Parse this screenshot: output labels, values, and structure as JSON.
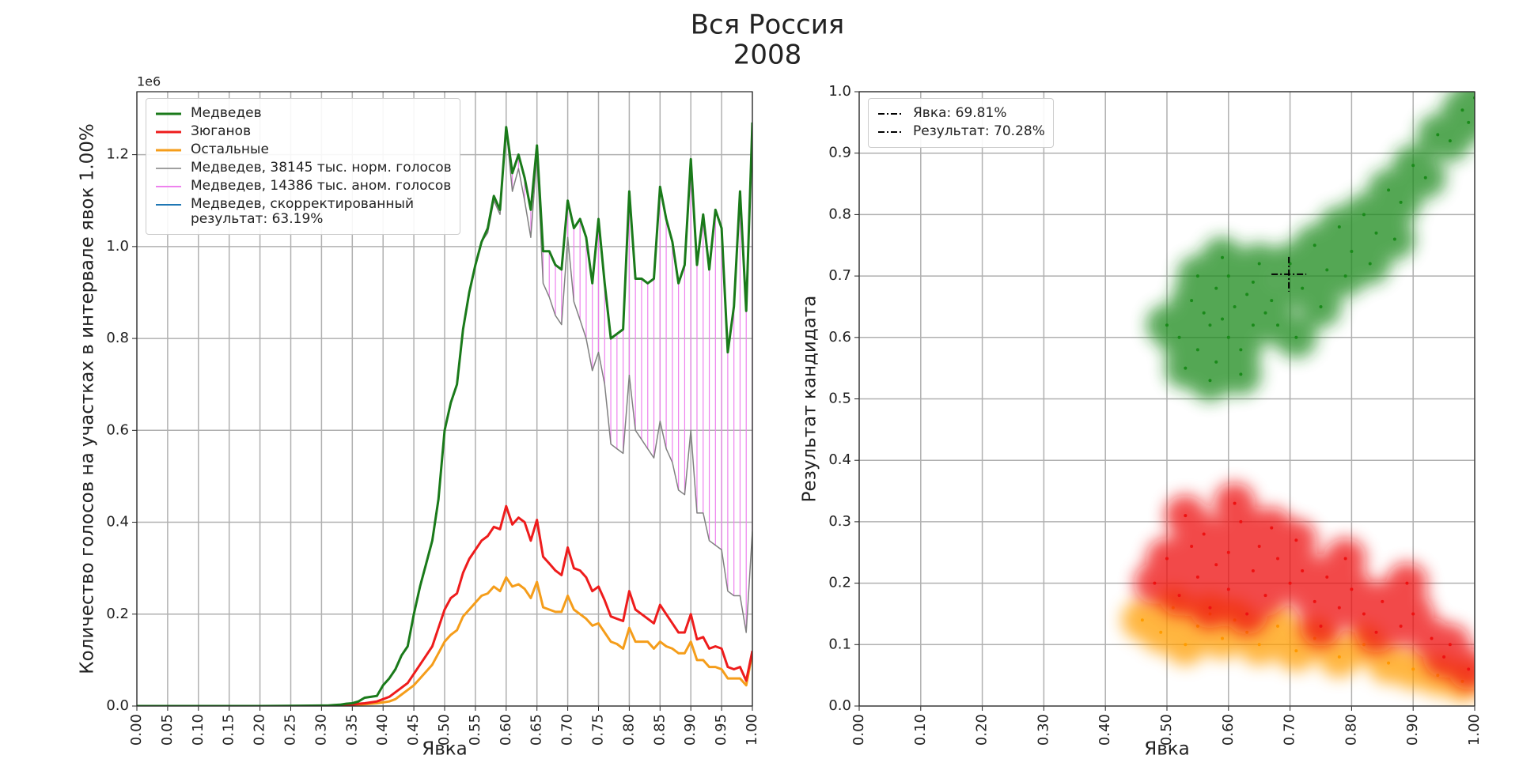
{
  "figure_title": [
    "Вся Россия",
    "2008"
  ],
  "chart_data": [
    {
      "type": "line",
      "xlabel": "Явка",
      "ylabel": "Количество голосов на участках в интервале явок 1.00%",
      "y_offset_label": "1e6",
      "grid": true,
      "legend": "upper left",
      "xlim": [
        0,
        1
      ],
      "ylim": [
        0,
        1.337
      ],
      "xticks": [
        {
          "value": 0,
          "label": "0.00"
        },
        {
          "value": 0.05,
          "label": "0.05"
        },
        {
          "value": 0.1,
          "label": "0.10"
        },
        {
          "value": 0.15,
          "label": "0.15"
        },
        {
          "value": 0.2,
          "label": "0.20"
        },
        {
          "value": 0.25,
          "label": "0.25"
        },
        {
          "value": 0.3,
          "label": "0.30"
        },
        {
          "value": 0.35,
          "label": "0.35"
        },
        {
          "value": 0.4,
          "label": "0.40"
        },
        {
          "value": 0.45,
          "label": "0.45"
        },
        {
          "value": 0.5,
          "label": "0.50"
        },
        {
          "value": 0.55,
          "label": "0.55"
        },
        {
          "value": 0.6,
          "label": "0.60"
        },
        {
          "value": 0.65,
          "label": "0.65"
        },
        {
          "value": 0.7,
          "label": "0.70"
        },
        {
          "value": 0.75,
          "label": "0.75"
        },
        {
          "value": 0.8,
          "label": "0.80"
        },
        {
          "value": 0.85,
          "label": "0.85"
        },
        {
          "value": 0.9,
          "label": "0.90"
        },
        {
          "value": 0.95,
          "label": "0.95"
        },
        {
          "value": 1,
          "label": "1.00"
        }
      ],
      "yticks": [
        {
          "value": 0,
          "label": "0.0"
        },
        0.2,
        0.4,
        0.6,
        0.8,
        {
          "value": 1,
          "label": "1.0"
        },
        1.2
      ],
      "x": [
        0,
        0.1,
        0.2,
        0.3,
        0.31,
        0.32,
        0.33,
        0.34,
        0.35,
        0.36,
        0.37,
        0.38,
        0.39,
        0.4,
        0.41,
        0.42,
        0.43,
        0.44,
        0.45,
        0.46,
        0.47,
        0.48,
        0.49,
        0.5,
        0.51,
        0.52,
        0.53,
        0.54,
        0.55,
        0.56,
        0.57,
        0.58,
        0.59,
        0.6,
        0.61,
        0.62,
        0.63,
        0.64,
        0.65,
        0.66,
        0.67,
        0.68,
        0.69,
        0.7,
        0.71,
        0.72,
        0.73,
        0.74,
        0.75,
        0.76,
        0.77,
        0.78,
        0.79,
        0.8,
        0.81,
        0.82,
        0.83,
        0.84,
        0.85,
        0.86,
        0.87,
        0.88,
        0.89,
        0.9,
        0.91,
        0.92,
        0.93,
        0.94,
        0.95,
        0.96,
        0.97,
        0.98,
        0.99,
        1.0
      ],
      "series": [
        {
          "name": "Медведев",
          "color": "#1a7a1a",
          "width": 3,
          "values": [
            0,
            0,
            0,
            0.001,
            0.001,
            0.002,
            0.003,
            0.005,
            0.006,
            0.01,
            0.018,
            0.02,
            0.022,
            0.045,
            0.06,
            0.08,
            0.11,
            0.13,
            0.2,
            0.26,
            0.31,
            0.36,
            0.45,
            0.6,
            0.66,
            0.7,
            0.82,
            0.9,
            0.96,
            1.01,
            1.04,
            1.11,
            1.08,
            1.26,
            1.16,
            1.2,
            1.15,
            1.08,
            1.22,
            0.99,
            0.99,
            0.96,
            0.95,
            1.1,
            1.04,
            1.06,
            1.02,
            0.92,
            1.06,
            0.92,
            0.8,
            0.81,
            0.82,
            1.12,
            0.93,
            0.93,
            0.92,
            0.93,
            1.13,
            1.06,
            1.01,
            0.92,
            0.96,
            1.19,
            0.96,
            1.07,
            0.95,
            1.08,
            1.04,
            0.77,
            0.87,
            1.12,
            0.86,
            1.27
          ]
        },
        {
          "name": "Зюганов",
          "color": "#ee1c1c",
          "width": 3,
          "values": [
            0,
            0,
            0,
            0,
            0,
            0.001,
            0.001,
            0.002,
            0.003,
            0.005,
            0.006,
            0.008,
            0.01,
            0.015,
            0.02,
            0.03,
            0.04,
            0.05,
            0.07,
            0.09,
            0.11,
            0.13,
            0.17,
            0.21,
            0.235,
            0.245,
            0.29,
            0.32,
            0.34,
            0.36,
            0.37,
            0.39,
            0.385,
            0.435,
            0.395,
            0.41,
            0.4,
            0.36,
            0.405,
            0.325,
            0.31,
            0.295,
            0.285,
            0.345,
            0.3,
            0.295,
            0.28,
            0.25,
            0.26,
            0.23,
            0.195,
            0.19,
            0.185,
            0.25,
            0.21,
            0.2,
            0.19,
            0.18,
            0.22,
            0.2,
            0.18,
            0.16,
            0.16,
            0.2,
            0.145,
            0.15,
            0.125,
            0.13,
            0.125,
            0.085,
            0.08,
            0.085,
            0.055,
            0.12
          ]
        },
        {
          "name": "Остальные",
          "color": "#f59d1a",
          "width": 3,
          "values": [
            0,
            0,
            0,
            0,
            0,
            0,
            0.001,
            0.001,
            0.002,
            0.003,
            0.004,
            0.005,
            0.006,
            0.008,
            0.01,
            0.015,
            0.025,
            0.035,
            0.045,
            0.06,
            0.075,
            0.09,
            0.115,
            0.14,
            0.155,
            0.165,
            0.195,
            0.21,
            0.225,
            0.24,
            0.245,
            0.26,
            0.25,
            0.28,
            0.26,
            0.265,
            0.255,
            0.235,
            0.27,
            0.215,
            0.21,
            0.205,
            0.205,
            0.24,
            0.21,
            0.2,
            0.19,
            0.175,
            0.18,
            0.16,
            0.14,
            0.135,
            0.125,
            0.17,
            0.14,
            0.14,
            0.14,
            0.125,
            0.14,
            0.13,
            0.125,
            0.115,
            0.115,
            0.14,
            0.1,
            0.1,
            0.085,
            0.085,
            0.08,
            0.06,
            0.06,
            0.06,
            0.045,
            0.115
          ]
        },
        {
          "name": "Медведев, 38145 тыс. норм. голосов",
          "color": "#808080",
          "width": 1.5,
          "values": [
            0,
            0,
            0,
            0.001,
            0.001,
            0.002,
            0.003,
            0.005,
            0.006,
            0.01,
            0.018,
            0.02,
            0.022,
            0.045,
            0.06,
            0.08,
            0.11,
            0.13,
            0.2,
            0.26,
            0.31,
            0.36,
            0.45,
            0.6,
            0.66,
            0.7,
            0.82,
            0.9,
            0.96,
            1.01,
            1.03,
            1.1,
            1.07,
            1.26,
            1.12,
            1.17,
            1.1,
            1.02,
            1.2,
            0.92,
            0.89,
            0.85,
            0.83,
            1.02,
            0.88,
            0.84,
            0.8,
            0.73,
            0.77,
            0.7,
            0.57,
            0.56,
            0.55,
            0.72,
            0.6,
            0.58,
            0.56,
            0.54,
            0.62,
            0.56,
            0.53,
            0.47,
            0.46,
            0.6,
            0.42,
            0.42,
            0.36,
            0.35,
            0.34,
            0.25,
            0.24,
            0.24,
            0.16,
            0.38
          ]
        },
        {
          "name": "Медведев, 14386 тыс. аном. голосов",
          "color": "#ee82ee",
          "style": "vlines"
        },
        {
          "name": "Медведев, скорректированный\nрезультат: 63.19%",
          "color": "#1f77b4"
        }
      ]
    },
    {
      "type": "scatter",
      "xlabel": "Явка",
      "ylabel": "Результат кандидата",
      "grid": true,
      "legend": "upper left",
      "xlim": [
        0,
        1
      ],
      "ylim": [
        0,
        1
      ],
      "xticks": [
        {
          "value": 0,
          "label": "0.00"
        },
        {
          "value": 0.1,
          "label": "0.10"
        },
        {
          "value": 0.2,
          "label": "0.20"
        },
        {
          "value": 0.3,
          "label": "0.30"
        },
        {
          "value": 0.4,
          "label": "0.40"
        },
        {
          "value": 0.5,
          "label": "0.50"
        },
        {
          "value": 0.6,
          "label": "0.60"
        },
        {
          "value": 0.7,
          "label": "0.70"
        },
        {
          "value": 0.8,
          "label": "0.80"
        },
        {
          "value": 0.9,
          "label": "0.90"
        },
        {
          "value": 1,
          "label": "1.00"
        }
      ],
      "yticks": [
        {
          "value": 0,
          "label": "0.0"
        },
        0.1,
        0.2,
        0.3,
        0.4,
        0.5,
        0.6,
        0.7,
        0.8,
        0.9,
        {
          "value": 1,
          "label": "1.0"
        }
      ],
      "crosshair": {
        "x": 0.6981,
        "y": 0.7028,
        "color": "#000000",
        "labels": [
          "Явка: 69.81%",
          "Результат: 70.28%"
        ]
      },
      "series": [
        {
          "color": "#ff9d00",
          "x": [
            0.46,
            0.49,
            0.51,
            0.53,
            0.55,
            0.57,
            0.59,
            0.61,
            0.63,
            0.65,
            0.68,
            0.71,
            0.74,
            0.78,
            0.82,
            0.86,
            0.9,
            0.94,
            0.98
          ],
          "values": [
            0.14,
            0.12,
            0.16,
            0.1,
            0.13,
            0.15,
            0.11,
            0.14,
            0.12,
            0.1,
            0.13,
            0.09,
            0.11,
            0.08,
            0.1,
            0.07,
            0.06,
            0.05,
            0.04
          ]
        },
        {
          "color": "#ee1111",
          "x": [
            0.48,
            0.5,
            0.52,
            0.54,
            0.55,
            0.56,
            0.58,
            0.6,
            0.6,
            0.62,
            0.64,
            0.65,
            0.66,
            0.68,
            0.7,
            0.72,
            0.74,
            0.76,
            0.78,
            0.8,
            0.82,
            0.85,
            0.88,
            0.9,
            0.93,
            0.96,
            0.99,
            0.53,
            0.57,
            0.61,
            0.63,
            0.67,
            0.71,
            0.75,
            0.79,
            0.84,
            0.89,
            0.95
          ],
          "values": [
            0.2,
            0.24,
            0.18,
            0.26,
            0.21,
            0.28,
            0.23,
            0.25,
            0.19,
            0.3,
            0.22,
            0.26,
            0.18,
            0.24,
            0.2,
            0.22,
            0.17,
            0.21,
            0.16,
            0.19,
            0.15,
            0.17,
            0.13,
            0.15,
            0.11,
            0.1,
            0.06,
            0.31,
            0.16,
            0.33,
            0.15,
            0.29,
            0.27,
            0.13,
            0.24,
            0.12,
            0.2,
            0.08
          ]
        },
        {
          "color": "#1a8a1a",
          "x": [
            0.5,
            0.52,
            0.54,
            0.55,
            0.56,
            0.57,
            0.58,
            0.58,
            0.59,
            0.6,
            0.6,
            0.61,
            0.62,
            0.63,
            0.64,
            0.65,
            0.66,
            0.53,
            0.55,
            0.57,
            0.59,
            0.62,
            0.64,
            0.67,
            0.7,
            0.72,
            0.74,
            0.76,
            0.78,
            0.8,
            0.82,
            0.84,
            0.86,
            0.88,
            0.9,
            0.92,
            0.94,
            0.96,
            0.98,
            0.99,
            1.0,
            0.68,
            0.71,
            0.75,
            0.79,
            0.83,
            0.87
          ],
          "values": [
            0.62,
            0.6,
            0.66,
            0.58,
            0.64,
            0.62,
            0.68,
            0.56,
            0.63,
            0.6,
            0.7,
            0.65,
            0.58,
            0.67,
            0.62,
            0.72,
            0.64,
            0.55,
            0.7,
            0.53,
            0.73,
            0.54,
            0.69,
            0.66,
            0.72,
            0.68,
            0.75,
            0.71,
            0.78,
            0.74,
            0.8,
            0.77,
            0.84,
            0.82,
            0.88,
            0.86,
            0.93,
            0.92,
            0.97,
            0.95,
            0.99,
            0.62,
            0.6,
            0.65,
            0.7,
            0.72,
            0.76
          ]
        }
      ]
    }
  ]
}
